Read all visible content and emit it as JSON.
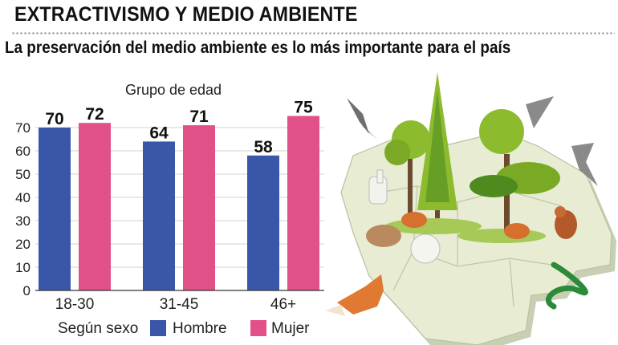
{
  "header": {
    "title": "EXTRACTIVISMO Y MEDIO AMBIENTE",
    "subtitle": "La preservación del medio ambiente es lo más importante para el país"
  },
  "chart_data": {
    "type": "bar",
    "title": "",
    "group_label": "Grupo de edad",
    "categories": [
      "18-30",
      "31-45",
      "46+"
    ],
    "series": [
      {
        "name": "Hombre",
        "values": [
          70,
          64,
          58
        ],
        "color": "#3a56a8"
      },
      {
        "name": "Mujer",
        "values": [
          72,
          71,
          75
        ],
        "color": "#e2508a"
      }
    ],
    "ylim": [
      0,
      80
    ],
    "yticks": [
      "0",
      "10",
      "20",
      "30",
      "40",
      "50",
      "60",
      "70"
    ],
    "ytick_values": [
      0,
      10,
      20,
      30,
      40,
      50,
      60,
      70
    ],
    "grid": true,
    "legend": {
      "title": "Según sexo",
      "position": "bottom"
    }
  },
  "illustration": {
    "icon": "bolivia-map-wildlife-illustration",
    "colors": {
      "map": "#e7ecd2",
      "map_shadow": "#c9cfb3",
      "tree": "#8dbb2e",
      "tree_dark": "#4f8a1f",
      "trunk": "#6b4a2f"
    }
  }
}
